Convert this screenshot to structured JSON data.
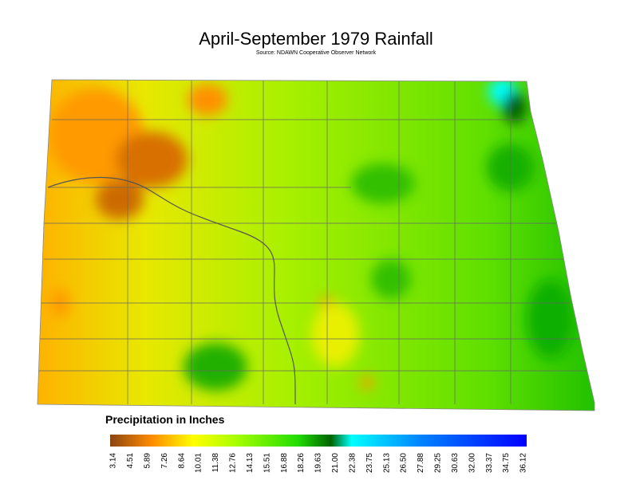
{
  "header": {
    "title": "April-September 1979 Rainfall",
    "subtitle": "Source: NDAWN Cooperative Observer Network"
  },
  "legend": {
    "title": "Precipitation in Inches",
    "ticks": [
      "3.14",
      "4.51",
      "5.89",
      "7.26",
      "8.64",
      "10.01",
      "11.38",
      "12.76",
      "14.13",
      "15.51",
      "16.88",
      "18.26",
      "19.63",
      "21.00",
      "22.38",
      "23.75",
      "25.13",
      "26.50",
      "27.88",
      "29.25",
      "30.63",
      "32.00",
      "33.37",
      "34.75",
      "36.12"
    ]
  }
}
